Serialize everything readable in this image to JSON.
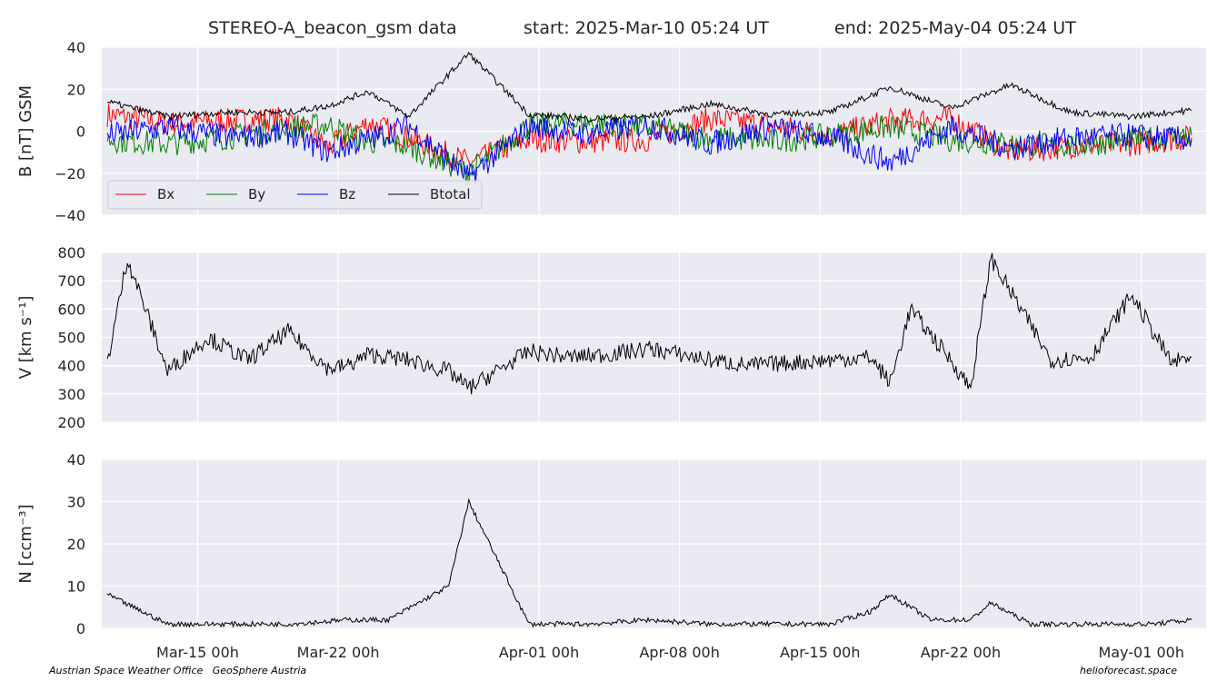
{
  "title": {
    "dataset": "STEREO-A_beacon_gsm data",
    "start": "start: 2025-Mar-10 05:24 UT",
    "end": "end: 2025-May-04 05:24 UT"
  },
  "footer": {
    "left": "Austrian Space Weather Office   GeoSphere Austria",
    "right": "helioforecast.space"
  },
  "colors": {
    "panel_bg": "#eaeaf2",
    "grid": "#ffffff",
    "bx": "#ff0000",
    "by": "#008000",
    "bz": "#0000ff",
    "bt": "#000000"
  },
  "chart_data": [
    {
      "type": "line",
      "ylabel": "B [nT] GSM",
      "xlim": [
        "2025-03-10 05:24",
        "2025-05-04 05:24"
      ],
      "ylim": [
        -40,
        40
      ],
      "yticks": [
        "−40",
        "−20",
        "0",
        "20",
        "40"
      ],
      "xticks": [
        {
          "date": "2025-03-15 00:00",
          "label": "Mar-15 00h"
        },
        {
          "date": "2025-03-22 00:00",
          "label": "Mar-22 00h"
        },
        {
          "date": "2025-04-01 00:00",
          "label": "Apr-01 00h"
        },
        {
          "date": "2025-04-08 00:00",
          "label": "Apr-08 00h"
        },
        {
          "date": "2025-04-15 00:00",
          "label": "Apr-15 00h"
        },
        {
          "date": "2025-04-22 00:00",
          "label": "Apr-22 00h"
        },
        {
          "date": "2025-05-01 00:00",
          "label": "May-01 00h"
        }
      ],
      "grid": true,
      "legend": "bottom-left",
      "series": [
        {
          "name": "Bx",
          "color": "#ff0000",
          "x": [
            "2025-03-10",
            "2025-03-13",
            "2025-03-16",
            "2025-03-19",
            "2025-03-21",
            "2025-03-23",
            "2025-03-25",
            "2025-03-28",
            "2025-03-31",
            "2025-04-03",
            "2025-04-06",
            "2025-04-09",
            "2025-04-12",
            "2025-04-15",
            "2025-04-18",
            "2025-04-21",
            "2025-04-24",
            "2025-04-27",
            "2025-04-30",
            "2025-05-03"
          ],
          "y": [
            8,
            4,
            5,
            6,
            -8,
            4,
            -3,
            -15,
            -4,
            -5,
            -4,
            6,
            3,
            -2,
            5,
            6,
            -10,
            -7,
            -6,
            -3
          ]
        },
        {
          "name": "By",
          "color": "#008000",
          "x": [
            "2025-03-10",
            "2025-03-13",
            "2025-03-16",
            "2025-03-19",
            "2025-03-21",
            "2025-03-23",
            "2025-03-25",
            "2025-03-28",
            "2025-03-31",
            "2025-04-03",
            "2025-04-06",
            "2025-04-09",
            "2025-04-12",
            "2025-04-15",
            "2025-04-18",
            "2025-04-21",
            "2025-04-24",
            "2025-04-27",
            "2025-04-30",
            "2025-05-03"
          ],
          "y": [
            -4,
            -6,
            -3,
            2,
            3,
            -5,
            -7,
            -20,
            3,
            4,
            2,
            -3,
            -5,
            -2,
            2,
            -4,
            -6,
            -7,
            -4,
            -2
          ]
        },
        {
          "name": "Bz",
          "color": "#0000ff",
          "x": [
            "2025-03-10",
            "2025-03-13",
            "2025-03-16",
            "2025-03-19",
            "2025-03-21",
            "2025-03-23",
            "2025-03-25",
            "2025-03-28",
            "2025-03-31",
            "2025-04-03",
            "2025-04-06",
            "2025-04-09",
            "2025-04-12",
            "2025-04-15",
            "2025-04-18",
            "2025-04-21",
            "2025-04-24",
            "2025-04-27",
            "2025-04-30",
            "2025-05-03"
          ],
          "y": [
            -2,
            2,
            -3,
            -1,
            -10,
            -4,
            3,
            -22,
            2,
            -1,
            3,
            -6,
            2,
            -3,
            -15,
            2,
            -8,
            -3,
            -2,
            -4
          ]
        },
        {
          "name": "Btotal",
          "color": "#000000",
          "x": [
            "2025-03-10",
            "2025-03-13",
            "2025-03-16",
            "2025-03-19",
            "2025-03-21",
            "2025-03-23",
            "2025-03-25",
            "2025-03-28",
            "2025-03-31",
            "2025-04-03",
            "2025-04-06",
            "2025-04-09",
            "2025-04-12",
            "2025-04-15",
            "2025-04-18",
            "2025-04-21",
            "2025-04-24",
            "2025-04-27",
            "2025-04-30",
            "2025-05-03"
          ],
          "y": [
            14,
            7,
            9,
            9,
            12,
            19,
            7,
            37,
            8,
            6,
            7,
            13,
            8,
            9,
            21,
            11,
            22,
            9,
            7,
            10
          ]
        }
      ]
    },
    {
      "type": "line",
      "ylabel": "V [km s⁻¹]",
      "xlim": [
        "2025-03-10 05:24",
        "2025-05-04 05:24"
      ],
      "ylim": [
        200,
        800
      ],
      "yticks": [
        "200",
        "300",
        "400",
        "500",
        "600",
        "700",
        "800"
      ],
      "grid": true,
      "series": [
        {
          "name": "",
          "color": "#000000",
          "x": [
            "2025-03-10",
            "2025-03-11",
            "2025-03-13",
            "2025-03-15",
            "2025-03-17",
            "2025-03-19",
            "2025-03-21",
            "2025-03-22",
            "2025-03-23",
            "2025-03-25",
            "2025-03-27",
            "2025-03-28",
            "2025-03-31",
            "2025-04-02",
            "2025-04-04",
            "2025-04-06",
            "2025-04-09",
            "2025-04-11",
            "2025-04-13",
            "2025-04-15",
            "2025-04-17",
            "2025-04-18",
            "2025-04-19",
            "2025-04-21",
            "2025-04-22",
            "2025-04-23",
            "2025-04-26",
            "2025-04-28",
            "2025-04-30",
            "2025-05-02",
            "2025-05-03"
          ],
          "y": [
            410,
            780,
            380,
            500,
            420,
            520,
            390,
            400,
            440,
            420,
            380,
            320,
            450,
            430,
            440,
            460,
            420,
            400,
            410,
            420,
            430,
            340,
            600,
            420,
            320,
            780,
            420,
            430,
            650,
            410,
            430
          ]
        }
      ]
    },
    {
      "type": "line",
      "ylabel": "N [ccm⁻³]",
      "xlim": [
        "2025-03-10 05:24",
        "2025-05-04 05:24"
      ],
      "ylim": [
        0,
        40
      ],
      "yticks": [
        "0",
        "10",
        "20",
        "30",
        "40"
      ],
      "grid": true,
      "series": [
        {
          "name": "",
          "color": "#000000",
          "x": [
            "2025-03-10",
            "2025-03-13",
            "2025-03-16",
            "2025-03-19",
            "2025-03-22",
            "2025-03-24",
            "2025-03-27",
            "2025-03-28",
            "2025-03-31",
            "2025-04-03",
            "2025-04-06",
            "2025-04-09",
            "2025-04-12",
            "2025-04-15",
            "2025-04-17",
            "2025-04-18",
            "2025-04-20",
            "2025-04-22",
            "2025-04-23",
            "2025-04-25",
            "2025-04-28",
            "2025-05-01",
            "2025-05-03"
          ],
          "y": [
            8,
            1,
            1,
            1,
            2,
            2,
            10,
            30,
            1,
            1,
            2,
            1,
            1,
            1,
            4,
            8,
            2,
            2,
            6,
            1,
            1,
            1,
            2
          ]
        }
      ]
    }
  ],
  "legend_items": [
    "Bx",
    "By",
    "Bz",
    "Btotal"
  ]
}
